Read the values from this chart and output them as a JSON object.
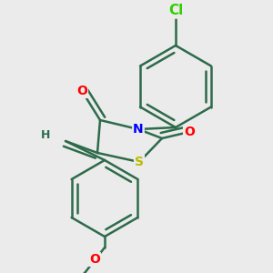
{
  "bg_color": "#ebebeb",
  "bond_color": "#2d6b4a",
  "bond_width": 1.8,
  "dbo": 0.012,
  "atom_colors": {
    "O": "#ff0000",
    "N": "#0000ff",
    "S": "#bbbb00",
    "Cl": "#33cc00",
    "C": "#2d6b4a",
    "H": "#2d6b4a"
  },
  "fs": 10
}
